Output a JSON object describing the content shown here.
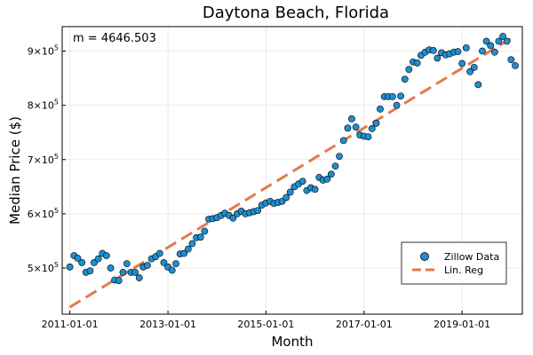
{
  "chart_data": {
    "type": "scatter",
    "title": "Daytona Beach, Florida",
    "xlabel": "Month",
    "ylabel": "Median Price ($)",
    "annotation": "m = 4646.503",
    "xlim": [
      "2010-11-05",
      "2020-03-25"
    ],
    "ylim": [
      415000,
      945000
    ],
    "grid": true,
    "legend_position": "bottom-right",
    "x_ticks": [
      {
        "value": "2011-01-01",
        "label": "2011-01-01"
      },
      {
        "value": "2013-01-01",
        "label": "2013-01-01"
      },
      {
        "value": "2015-01-01",
        "label": "2015-01-01"
      },
      {
        "value": "2017-01-01",
        "label": "2017-01-01"
      },
      {
        "value": "2019-01-01",
        "label": "2019-01-01"
      }
    ],
    "y_ticks": [
      {
        "value": 500000,
        "base": "5×10",
        "exp": "5"
      },
      {
        "value": 600000,
        "base": "6×10",
        "exp": "5"
      },
      {
        "value": 700000,
        "base": "7×10",
        "exp": "5"
      },
      {
        "value": 800000,
        "base": "8×10",
        "exp": "5"
      },
      {
        "value": 900000,
        "base": "9×10",
        "exp": "5"
      }
    ],
    "series": [
      {
        "name": "Zillow Data",
        "kind": "scatter",
        "color": "#1f8ecf",
        "points": [
          [
            "2011-01-01",
            502000
          ],
          [
            "2011-02-01",
            523000
          ],
          [
            "2011-03-01",
            518000
          ],
          [
            "2011-04-01",
            510000
          ],
          [
            "2011-05-01",
            492000
          ],
          [
            "2011-06-01",
            495000
          ],
          [
            "2011-07-01",
            510000
          ],
          [
            "2011-08-01",
            517000
          ],
          [
            "2011-09-01",
            527000
          ],
          [
            "2011-10-01",
            523000
          ],
          [
            "2011-11-01",
            500000
          ],
          [
            "2011-12-01",
            478000
          ],
          [
            "2012-01-01",
            477000
          ],
          [
            "2012-02-01",
            492000
          ],
          [
            "2012-03-01",
            508000
          ],
          [
            "2012-04-01",
            492000
          ],
          [
            "2012-05-01",
            492000
          ],
          [
            "2012-06-01",
            482000
          ],
          [
            "2012-07-01",
            502000
          ],
          [
            "2012-08-01",
            505000
          ],
          [
            "2012-09-01",
            517000
          ],
          [
            "2012-10-01",
            521000
          ],
          [
            "2012-11-01",
            527000
          ],
          [
            "2012-12-01",
            510000
          ],
          [
            "2013-01-01",
            502000
          ],
          [
            "2013-02-01",
            496000
          ],
          [
            "2013-03-01",
            508000
          ],
          [
            "2013-04-01",
            526000
          ],
          [
            "2013-05-01",
            527000
          ],
          [
            "2013-06-01",
            535000
          ],
          [
            "2013-07-01",
            545000
          ],
          [
            "2013-08-01",
            556000
          ],
          [
            "2013-09-01",
            557000
          ],
          [
            "2013-10-01",
            568000
          ],
          [
            "2013-11-01",
            590000
          ],
          [
            "2013-12-01",
            591000
          ],
          [
            "2014-01-01",
            593000
          ],
          [
            "2014-02-01",
            597000
          ],
          [
            "2014-03-01",
            601000
          ],
          [
            "2014-04-01",
            597000
          ],
          [
            "2014-05-01",
            592000
          ],
          [
            "2014-06-01",
            600000
          ],
          [
            "2014-07-01",
            605000
          ],
          [
            "2014-08-01",
            600000
          ],
          [
            "2014-09-01",
            602000
          ],
          [
            "2014-10-01",
            604000
          ],
          [
            "2014-11-01",
            606000
          ],
          [
            "2014-12-01",
            616000
          ],
          [
            "2015-01-01",
            620000
          ],
          [
            "2015-02-01",
            623000
          ],
          [
            "2015-03-01",
            619000
          ],
          [
            "2015-04-01",
            621000
          ],
          [
            "2015-05-01",
            623000
          ],
          [
            "2015-06-01",
            630000
          ],
          [
            "2015-07-01",
            640000
          ],
          [
            "2015-08-01",
            650000
          ],
          [
            "2015-09-01",
            655000
          ],
          [
            "2015-10-01",
            660000
          ],
          [
            "2015-11-01",
            643000
          ],
          [
            "2015-12-01",
            648000
          ],
          [
            "2016-01-01",
            645000
          ],
          [
            "2016-02-01",
            667000
          ],
          [
            "2016-03-01",
            662000
          ],
          [
            "2016-04-01",
            664000
          ],
          [
            "2016-05-01",
            673000
          ],
          [
            "2016-06-01",
            688000
          ],
          [
            "2016-07-01",
            706000
          ],
          [
            "2016-08-01",
            735000
          ],
          [
            "2016-09-01",
            758000
          ],
          [
            "2016-10-01",
            775000
          ],
          [
            "2016-11-01",
            760000
          ],
          [
            "2016-12-01",
            745000
          ],
          [
            "2017-01-01",
            743000
          ],
          [
            "2017-02-01",
            742000
          ],
          [
            "2017-03-01",
            757000
          ],
          [
            "2017-04-01",
            767000
          ],
          [
            "2017-05-01",
            793000
          ],
          [
            "2017-06-01",
            816000
          ],
          [
            "2017-07-01",
            816000
          ],
          [
            "2017-08-01",
            816000
          ],
          [
            "2017-09-01",
            800000
          ],
          [
            "2017-10-01",
            817000
          ],
          [
            "2017-11-01",
            848000
          ],
          [
            "2017-12-01",
            866000
          ],
          [
            "2018-01-01",
            880000
          ],
          [
            "2018-02-01",
            878000
          ],
          [
            "2018-03-01",
            892000
          ],
          [
            "2018-04-01",
            898000
          ],
          [
            "2018-05-01",
            902000
          ],
          [
            "2018-06-01",
            901000
          ],
          [
            "2018-07-01",
            887000
          ],
          [
            "2018-08-01",
            897000
          ],
          [
            "2018-09-01",
            893000
          ],
          [
            "2018-10-01",
            895000
          ],
          [
            "2018-11-01",
            898000
          ],
          [
            "2018-12-01",
            899000
          ],
          [
            "2019-01-01",
            877000
          ],
          [
            "2019-02-01",
            906000
          ],
          [
            "2019-03-01",
            862000
          ],
          [
            "2019-04-01",
            870000
          ],
          [
            "2019-05-01",
            838000
          ],
          [
            "2019-06-01",
            900000
          ],
          [
            "2019-07-01",
            918000
          ],
          [
            "2019-08-01",
            910000
          ],
          [
            "2019-09-01",
            898000
          ],
          [
            "2019-10-01",
            918000
          ],
          [
            "2019-11-01",
            927000
          ],
          [
            "2019-12-01",
            918000
          ],
          [
            "2020-01-01",
            884000
          ],
          [
            "2020-02-01",
            873000
          ]
        ]
      },
      {
        "name": "Lin. Reg",
        "kind": "line",
        "dashed": true,
        "color": "#e07b4f",
        "points": [
          [
            "2011-01-01",
            428000
          ],
          [
            "2020-02-01",
            928000
          ]
        ]
      }
    ]
  }
}
